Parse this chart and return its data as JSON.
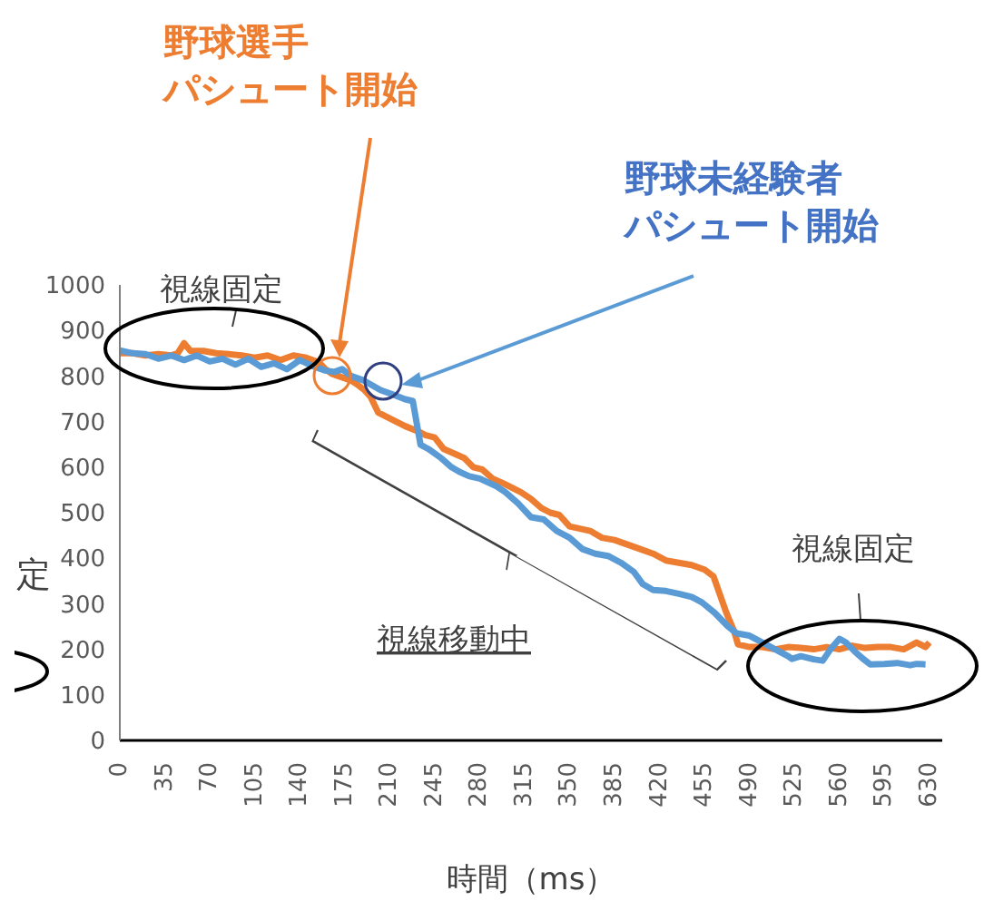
{
  "chart_data": {
    "type": "line",
    "xlabel": "時間（ms）",
    "ylabel": "定",
    "xlim": [
      0,
      640
    ],
    "xticks": [
      0,
      35,
      70,
      105,
      140,
      175,
      210,
      245,
      280,
      315,
      350,
      385,
      420,
      455,
      490,
      525,
      560,
      595,
      630
    ],
    "ylim": [
      0,
      1000
    ],
    "yticks": [
      0,
      100,
      200,
      300,
      400,
      500,
      600,
      700,
      800,
      900,
      1000
    ],
    "marker": "none",
    "line_style": "solid",
    "series": [
      {
        "color": "#ed7d31",
        "x": [
          0,
          10,
          20,
          30,
          40,
          45,
          50,
          55,
          65,
          75,
          85,
          95,
          105,
          115,
          125,
          135,
          145,
          155,
          160,
          165,
          170,
          175,
          180,
          185,
          190,
          195,
          201,
          208,
          215,
          222,
          231,
          238,
          245,
          252,
          260,
          268,
          275,
          282,
          290,
          298,
          305,
          312,
          320,
          328,
          335,
          342,
          350,
          358,
          366,
          375,
          385,
          395,
          405,
          415,
          425,
          435,
          445,
          455,
          462,
          467,
          472,
          478,
          481,
          490,
          500,
          510,
          520,
          530,
          540,
          550,
          560,
          570,
          580,
          590,
          600,
          610,
          620,
          627,
          630
        ],
        "values": [
          850,
          850,
          845,
          848,
          845,
          850,
          872,
          855,
          855,
          850,
          848,
          845,
          840,
          845,
          835,
          845,
          840,
          830,
          815,
          805,
          800,
          795,
          790,
          781,
          770,
          755,
          720,
          710,
          700,
          690,
          680,
          670,
          665,
          640,
          630,
          620,
          600,
          595,
          575,
          565,
          555,
          545,
          530,
          510,
          500,
          495,
          470,
          465,
          460,
          445,
          440,
          430,
          420,
          410,
          395,
          390,
          385,
          375,
          360,
          320,
          280,
          240,
          211,
          205,
          205,
          200,
          205,
          203,
          200,
          205,
          200,
          208,
          203,
          205,
          205,
          200,
          215,
          205,
          215
        ]
      },
      {
        "color": "#5b9bd5",
        "x": [
          0,
          10,
          20,
          30,
          40,
          50,
          60,
          70,
          80,
          90,
          100,
          110,
          120,
          130,
          140,
          150,
          160,
          167,
          173,
          180,
          190,
          203,
          212,
          222,
          228,
          234,
          240,
          250,
          258,
          264,
          272,
          280,
          293,
          300,
          310,
          320,
          330,
          340,
          350,
          360,
          370,
          380,
          390,
          400,
          407,
          415,
          425,
          435,
          445,
          453,
          463,
          473,
          480,
          490,
          500,
          510,
          520,
          523,
          530,
          540,
          547,
          553,
          560,
          565,
          572,
          578,
          584,
          595,
          605,
          615,
          620,
          627
        ],
        "values": [
          856,
          850,
          848,
          838,
          845,
          835,
          845,
          832,
          838,
          825,
          838,
          820,
          828,
          815,
          835,
          822,
          812,
          809,
          815,
          800,
          790,
          769,
          760,
          749,
          745,
          649,
          640,
          620,
          600,
          590,
          580,
          575,
          558,
          545,
          520,
          490,
          485,
          460,
          445,
          420,
          410,
          405,
          390,
          370,
          343,
          330,
          328,
          322,
          315,
          303,
          280,
          251,
          235,
          230,
          215,
          200,
          185,
          179,
          185,
          178,
          175,
          200,
          223,
          215,
          195,
          180,
          167,
          168,
          170,
          165,
          168,
          167
        ]
      }
    ],
    "annotations": [
      "野球選手",
      "パシュート開始",
      "野球未経験者",
      "パシュート開始",
      "視線固定",
      "視線固定",
      "視線移動中"
    ]
  }
}
